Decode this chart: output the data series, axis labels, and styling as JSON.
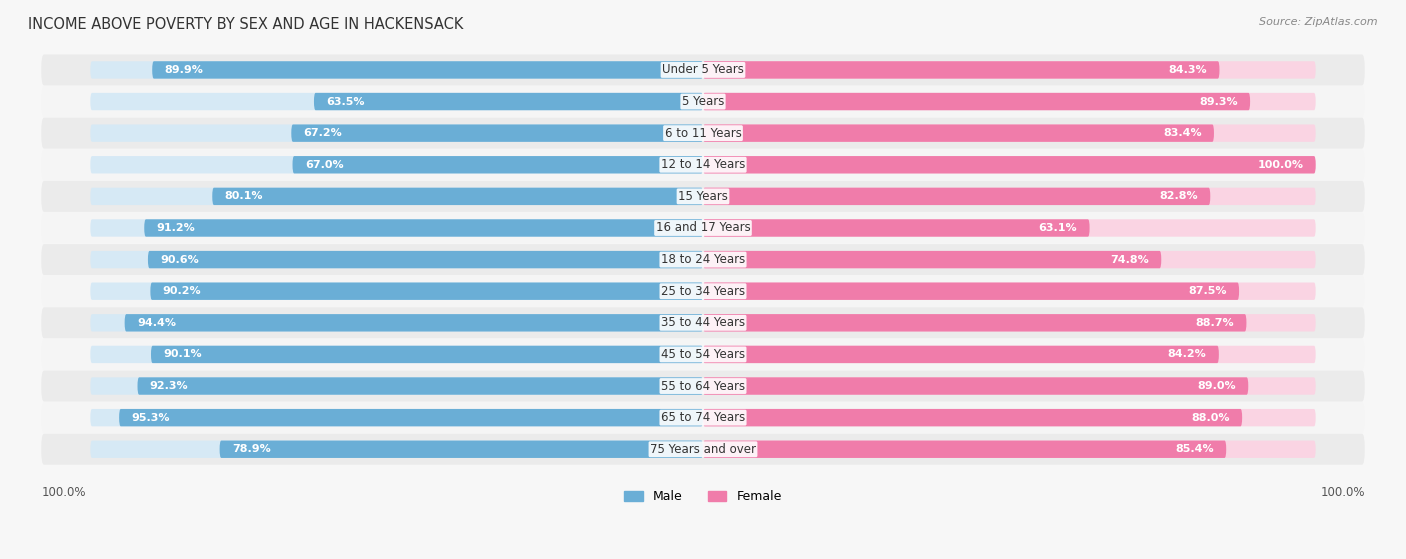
{
  "title": "INCOME ABOVE POVERTY BY SEX AND AGE IN HACKENSACK",
  "source": "Source: ZipAtlas.com",
  "categories": [
    "Under 5 Years",
    "5 Years",
    "6 to 11 Years",
    "12 to 14 Years",
    "15 Years",
    "16 and 17 Years",
    "18 to 24 Years",
    "25 to 34 Years",
    "35 to 44 Years",
    "45 to 54 Years",
    "55 to 64 Years",
    "65 to 74 Years",
    "75 Years and over"
  ],
  "male_values": [
    89.9,
    63.5,
    67.2,
    67.0,
    80.1,
    91.2,
    90.6,
    90.2,
    94.4,
    90.1,
    92.3,
    95.3,
    78.9
  ],
  "female_values": [
    84.3,
    89.3,
    83.4,
    100.0,
    82.8,
    63.1,
    74.8,
    87.5,
    88.7,
    84.2,
    89.0,
    88.0,
    85.4
  ],
  "male_color": "#6aaed6",
  "female_color": "#f07caa",
  "male_bg_color": "#d6e9f5",
  "female_bg_color": "#fad4e3",
  "row_odd_color": "#f0f0f0",
  "row_even_color": "#fafafa",
  "title_fontsize": 10.5,
  "label_fontsize": 8.5,
  "value_fontsize": 8.0,
  "source_fontsize": 8.0,
  "legend_fontsize": 9,
  "max_value": 100.0,
  "bar_height": 0.55
}
